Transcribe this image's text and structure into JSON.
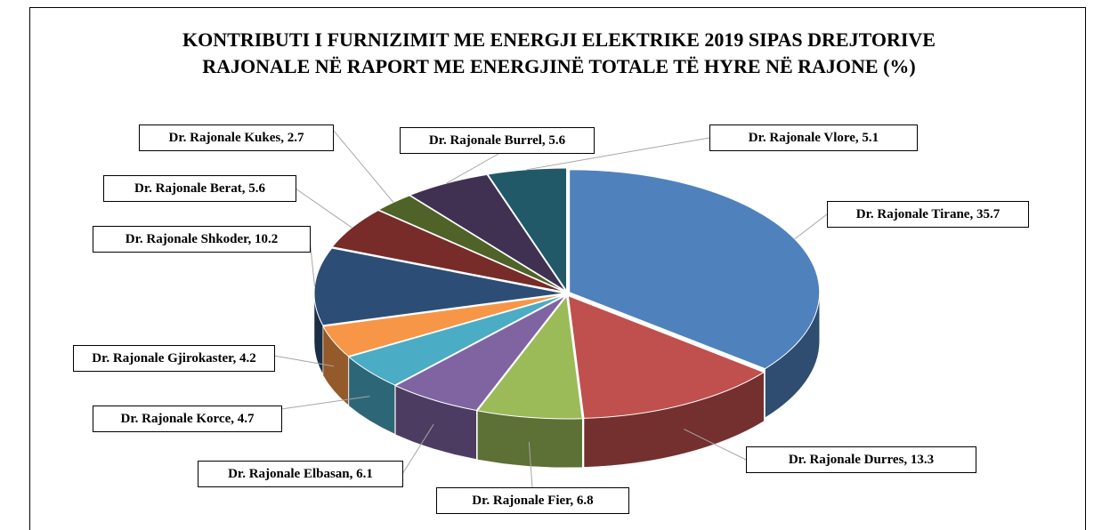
{
  "chart_data": {
    "type": "pie",
    "title": "KONTRIBUTI I FURNIZIMIT ME ENERGJI ELEKTRIKE 2019 SIPAS DREJTORIVE RAJONALE NË RAPORT ME ENERGJINË TOTALE TË HYRE NË RAJONE (%)",
    "values": [
      35.7,
      13.3,
      6.8,
      6.1,
      4.7,
      4.2,
      10.2,
      5.6,
      2.7,
      5.6,
      5.1
    ],
    "value_labels": [
      "Dr. Rajonale Tirane, 35.7",
      "Dr. Rajonale Durres, 13.3",
      "Dr. Rajonale Fier, 6.8",
      "Dr. Rajonale Elbasan, 6.1",
      "Dr. Rajonale Korce, 4.7",
      "Dr. Rajonale Gjirokaster, 4.2",
      "Dr. Rajonale Shkoder, 10.2",
      "Dr. Rajonale Berat, 5.6",
      "Dr. Rajonale Kukes, 2.7",
      "Dr. Rajonale Burrel, 5.6",
      "Dr. Rajonale Vlore, 5.1"
    ],
    "colors": [
      "#4f81bd",
      "#c0504d",
      "#9bbb59",
      "#8064a2",
      "#4bacc6",
      "#f79646",
      "#2c4d75",
      "#772c2a",
      "#4f6228",
      "#403152",
      "#215968"
    ]
  }
}
